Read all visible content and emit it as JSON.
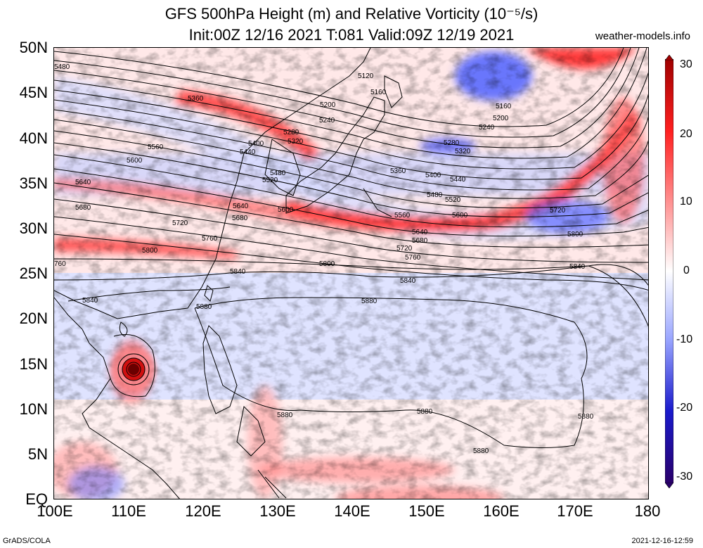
{
  "header": {
    "title_line1": "GFS 500hPa Height (m) and Relative Vorticity (10⁻⁵/s)",
    "title_line2": "Init:00Z 12/16 2021 T:081 Valid:09Z 12/19 2021",
    "site": "weather-models.info"
  },
  "axes": {
    "lat_labels": [
      "50N",
      "45N",
      "40N",
      "35N",
      "30N",
      "25N",
      "20N",
      "15N",
      "10N",
      "5N",
      "EQ"
    ],
    "lon_labels": [
      "100E",
      "110E",
      "120E",
      "130E",
      "140E",
      "150E",
      "160E",
      "170E",
      "180"
    ]
  },
  "colorbar": {
    "labels": [
      "30",
      "20",
      "10",
      "0",
      "-10",
      "-20",
      "-30"
    ],
    "colors": [
      "#a00000",
      "#ff2020",
      "#ff9a9a",
      "#ffffff",
      "#9aa6ff",
      "#1a1acc",
      "#2a006a"
    ]
  },
  "contour_labels": [
    "5480",
    "5120",
    "5160",
    "5360",
    "5200",
    "5240",
    "5160",
    "5200",
    "5240",
    "5280",
    "5320",
    "5400",
    "5440",
    "5560",
    "5280",
    "5320",
    "5600",
    "5480",
    "5520",
    "5360",
    "5400",
    "5440",
    "5640",
    "5480",
    "5520",
    "5640",
    "5600",
    "5680",
    "5680",
    "5560",
    "5600",
    "5720",
    "5720",
    "5640",
    "5760",
    "5680",
    "5800",
    "5720",
    "5760",
    "5800",
    "5800",
    "760",
    "5840",
    "5840",
    "5840",
    "5840",
    "5880",
    "5880",
    "5880",
    "5880",
    "5880",
    "5880"
  ],
  "footer": {
    "left": "GrADS/COLA",
    "right": "2021-12-16-12:59"
  }
}
